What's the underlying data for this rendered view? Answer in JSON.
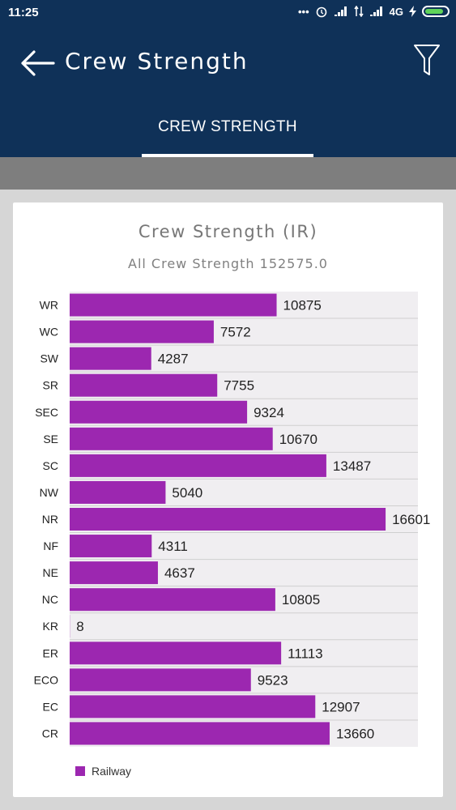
{
  "status_bar": {
    "time": "11:25",
    "network": "4G",
    "icons": [
      "dots-icon",
      "alarm-icon",
      "signal-icon",
      "data-arrows-icon",
      "signal-icon",
      "charging-icon",
      "battery-icon"
    ]
  },
  "app_bar": {
    "title": "Crew Strength",
    "back_icon": "arrow-left-icon",
    "filter_icon": "filter-icon"
  },
  "tabs": [
    {
      "label": "CREW STRENGTH",
      "selected": true
    }
  ],
  "colors": {
    "primary": "#0f3158",
    "bar": "#9c27b0",
    "plot_background": "#f0eef1"
  },
  "chart_data": {
    "type": "bar",
    "orientation": "horizontal",
    "title": "Crew Strength (IR)",
    "subtitle": "All Crew Strength 152575.0",
    "categories": [
      "WR",
      "WC",
      "SW",
      "SR",
      "SEC",
      "SE",
      "SC",
      "NW",
      "NR",
      "NF",
      "NE",
      "NC",
      "KR",
      "ER",
      "ECO",
      "EC",
      "CR"
    ],
    "series": [
      {
        "name": "Railway",
        "values": [
          10875,
          7572,
          4287,
          7755,
          9324,
          10670,
          13487,
          5040,
          16601,
          4311,
          4637,
          10805,
          8,
          11113,
          9523,
          12907,
          13660
        ],
        "labels": [
          "10875",
          "7572",
          "4287",
          "7755",
          "9324",
          "10670",
          "13487",
          "5040",
          "16601",
          "4311",
          "4637",
          "10805",
          "8",
          "11113",
          "9523",
          "12907",
          "13660"
        ]
      }
    ],
    "xlim": [
      0,
      18300
    ],
    "grid": true,
    "legend": "bottom-left"
  }
}
